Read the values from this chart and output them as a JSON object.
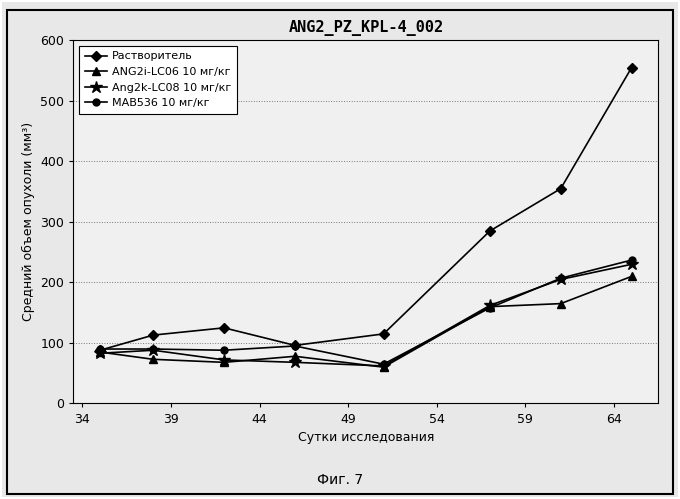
{
  "title": "ANG2_PZ_KPL-4_002",
  "xlabel": "Сутки исследования",
  "ylabel": "Средний объем опухоли (мм³)",
  "caption": "Фиг. 7",
  "xlim": [
    33.5,
    66.5
  ],
  "ylim": [
    0,
    600
  ],
  "xticks": [
    34,
    39,
    44,
    49,
    54,
    59,
    64
  ],
  "yticks": [
    0,
    100,
    200,
    300,
    400,
    500,
    600
  ],
  "hlines": [
    100,
    200,
    300,
    400,
    500
  ],
  "series": [
    {
      "label": "Растворитель",
      "x": [
        35,
        38,
        42,
        46,
        51,
        57,
        61,
        65
      ],
      "y": [
        88,
        113,
        125,
        96,
        115,
        285,
        355,
        555
      ],
      "marker": "D",
      "markersize": 5,
      "color": "#000000",
      "linestyle": "-",
      "linewidth": 1.2
    },
    {
      "label": "ANG2i-LC06 10 мг/кг",
      "x": [
        35,
        38,
        42,
        46,
        51,
        57,
        61,
        65
      ],
      "y": [
        85,
        73,
        68,
        78,
        60,
        160,
        165,
        210
      ],
      "marker": "^",
      "markersize": 6,
      "color": "#000000",
      "linestyle": "-",
      "linewidth": 1.2
    },
    {
      "label": "Ang2k-LC08 10 мг/кг",
      "x": [
        35,
        38,
        42,
        46,
        51,
        57,
        61,
        65
      ],
      "y": [
        83,
        88,
        72,
        68,
        62,
        162,
        205,
        230
      ],
      "marker": "*",
      "markersize": 9,
      "color": "#000000",
      "linestyle": "-",
      "linewidth": 1.2
    },
    {
      "label": "MAB536 10 мг/кг",
      "x": [
        35,
        38,
        42,
        46,
        51,
        57,
        61,
        65
      ],
      "y": [
        90,
        90,
        88,
        95,
        65,
        158,
        207,
        237
      ],
      "marker": "o",
      "markersize": 5,
      "color": "#000000",
      "linestyle": "-",
      "linewidth": 1.2
    }
  ],
  "fig_bg_color": "#e8e8e8",
  "plot_bg_color": "#f0f0f0",
  "title_fontsize": 11,
  "label_fontsize": 9,
  "tick_fontsize": 9,
  "legend_fontsize": 8,
  "caption_fontsize": 10
}
